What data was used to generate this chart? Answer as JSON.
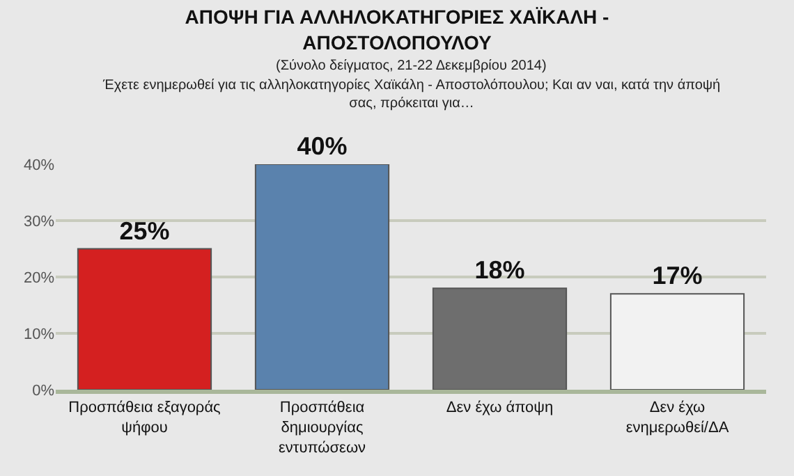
{
  "chart_data": {
    "type": "bar",
    "title": "ΑΠΟΨΗ ΓΙΑ ΑΛΛΗΛΟΚΑΤΗΓΟΡΙΕΣ ΧΑΪΚΑΛΗ - ΑΠΟΣΤΟΛΟΠΟΥΛΟΥ",
    "subtitle": "(Σύνολο δείγματος, 21-22 Δεκεμβρίου 2014)",
    "annotations": [
      "Έχετε ενημερωθεί για τις αλληλοκατηγορίες Χαϊκάλη - Αποστολόπουλου; Και αν ναι, κατά την άποψή σας, πρόκειται για…"
    ],
    "categories": [
      "Προσπάθεια εξαγοράς ψήφου",
      "Προσπάθεια δημιουργίας εντυπώσεων",
      "Δεν έχω άποψη",
      "Δεν έχω ενημερωθεί/ΔΑ"
    ],
    "values": [
      25,
      40,
      18,
      17
    ],
    "value_labels": [
      "25%",
      "40%",
      "18%",
      "17%"
    ],
    "colors": [
      "#d42020",
      "#5a82ad",
      "#6e6e6e",
      "#f2f2f2"
    ],
    "ylim": [
      0,
      40
    ],
    "yticks": [
      {
        "value": 0,
        "label": "0%"
      },
      {
        "value": 10,
        "label": "10%"
      },
      {
        "value": 20,
        "label": "20%"
      },
      {
        "value": 30,
        "label": "30%"
      },
      {
        "value": 40,
        "label": "40%"
      }
    ],
    "grid": "y",
    "legend": false
  }
}
